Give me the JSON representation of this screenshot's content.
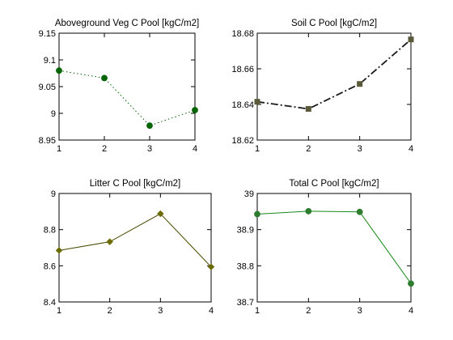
{
  "chart_data": [
    {
      "type": "line",
      "title": "Aboveground Veg C Pool [kgC/m2]",
      "x": [
        1,
        2,
        3,
        4
      ],
      "series": [
        {
          "values": [
            9.08,
            9.066,
            8.977,
            9.006
          ],
          "color": "#006400",
          "line_style": "dotted",
          "marker": "circle"
        }
      ],
      "xlim": [
        1,
        4
      ],
      "ylim": [
        8.95,
        9.15
      ],
      "xticks": [
        "1",
        "2",
        "3",
        "4"
      ],
      "yticks": [
        "8.95",
        "9",
        "9.05",
        "9.1",
        "9.15"
      ],
      "ytick_values": [
        8.95,
        9.0,
        9.05,
        9.1,
        9.15
      ]
    },
    {
      "type": "line",
      "title": "Soil C Pool [kgC/m2]",
      "x": [
        1,
        2,
        3,
        4
      ],
      "series": [
        {
          "values": [
            18.6415,
            18.6375,
            18.6515,
            18.6765
          ],
          "color": "#1a1a1a",
          "marker_color": "#5a5a3a",
          "line_style": "dash-dot",
          "marker": "square"
        }
      ],
      "xlim": [
        1,
        4
      ],
      "ylim": [
        18.62,
        18.68
      ],
      "xticks": [
        "1",
        "2",
        "3",
        "4"
      ],
      "yticks": [
        "18.62",
        "18.64",
        "18.66",
        "18.68"
      ],
      "ytick_values": [
        18.62,
        18.64,
        18.66,
        18.68
      ]
    },
    {
      "type": "line",
      "title": "Litter C Pool [kgC/m2]",
      "x": [
        1,
        2,
        3,
        4
      ],
      "series": [
        {
          "values": [
            8.685,
            8.733,
            8.888,
            8.594
          ],
          "color": "#4a4a00",
          "marker_color": "#6b6b00",
          "line_style": "solid",
          "marker": "diamond"
        }
      ],
      "xlim": [
        1,
        4
      ],
      "ylim": [
        8.4,
        9.0
      ],
      "xticks": [
        "1",
        "2",
        "3",
        "4"
      ],
      "yticks": [
        "8.4",
        "8.6",
        "8.8",
        "9"
      ],
      "ytick_values": [
        8.4,
        8.6,
        8.8,
        9.0
      ]
    },
    {
      "type": "line",
      "title": "Total C Pool [kgC/m2]",
      "x": [
        1,
        2,
        3,
        4
      ],
      "series": [
        {
          "values": [
            38.943,
            38.951,
            38.949,
            38.751
          ],
          "color": "#1a8a1a",
          "marker_color": "#2e7d2e",
          "line_style": "solid",
          "marker": "circle"
        }
      ],
      "xlim": [
        1,
        4
      ],
      "ylim": [
        38.7,
        39.0
      ],
      "xticks": [
        "1",
        "2",
        "3",
        "4"
      ],
      "yticks": [
        "38.7",
        "38.8",
        "38.9",
        "39"
      ],
      "ytick_values": [
        38.7,
        38.8,
        38.9,
        39.0
      ]
    }
  ]
}
